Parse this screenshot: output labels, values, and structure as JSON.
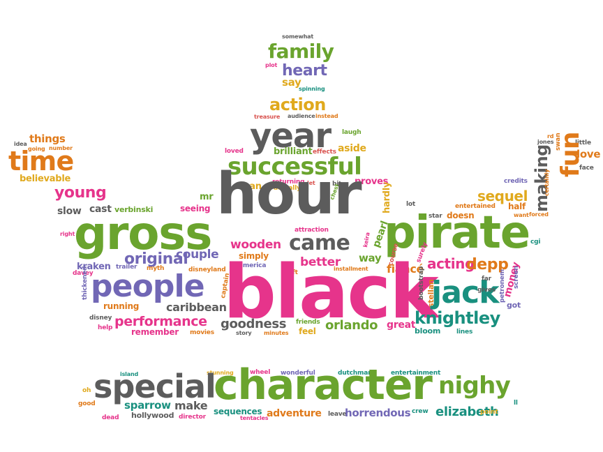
{
  "palette": {
    "green": "#6aa42e",
    "gray": "#5c5c5c",
    "pink": "#e6348b",
    "purple": "#7167b5",
    "orange": "#e07a1a",
    "yellow": "#e0a91d",
    "teal": "#19907f",
    "red": "#d9534f",
    "blue": "#2b8fb8"
  },
  "words": [
    {
      "text": "somewhat",
      "color": "gray"
    },
    {
      "text": "family",
      "color": "green"
    },
    {
      "text": "plot",
      "color": "pink"
    },
    {
      "text": "heart",
      "color": "purple"
    },
    {
      "text": "say",
      "color": "yellow"
    },
    {
      "text": "spinning",
      "color": "teal"
    },
    {
      "text": "action",
      "color": "yellow"
    },
    {
      "text": "treasure",
      "color": "red"
    },
    {
      "text": "audience",
      "color": "gray"
    },
    {
      "text": "instead",
      "color": "orange"
    },
    {
      "text": "year",
      "color": "gray"
    },
    {
      "text": "laugh",
      "color": "green"
    },
    {
      "text": "things",
      "color": "orange"
    },
    {
      "text": "idea",
      "color": "gray"
    },
    {
      "text": "going",
      "color": "orange"
    },
    {
      "text": "number",
      "color": "orange"
    },
    {
      "text": "time",
      "color": "orange"
    },
    {
      "text": "believable",
      "color": "yellow"
    },
    {
      "text": "loved",
      "color": "pink"
    },
    {
      "text": "brilliant",
      "color": "green"
    },
    {
      "text": "effects",
      "color": "red"
    },
    {
      "text": "aside",
      "color": "yellow"
    },
    {
      "text": "successful",
      "color": "green"
    },
    {
      "text": "rd",
      "color": "orange"
    },
    {
      "text": "jones",
      "color": "gray"
    },
    {
      "text": "little",
      "color": "gray"
    },
    {
      "text": "fun",
      "color": "orange"
    },
    {
      "text": "love",
      "color": "orange"
    },
    {
      "text": "face",
      "color": "gray"
    },
    {
      "text": "swan",
      "color": "orange"
    },
    {
      "text": "making",
      "color": "gray"
    },
    {
      "text": "credits",
      "color": "purple"
    },
    {
      "text": "certainly",
      "color": "orange"
    },
    {
      "text": "young",
      "color": "pink"
    },
    {
      "text": "man",
      "color": "yellow"
    },
    {
      "text": "returning",
      "color": "pink"
    },
    {
      "text": "actually",
      "color": "yellow"
    },
    {
      "text": "let",
      "color": "red"
    },
    {
      "text": "bit",
      "color": "gray"
    },
    {
      "text": "proves",
      "color": "pink"
    },
    {
      "text": "mr",
      "color": "green"
    },
    {
      "text": "chest",
      "color": "green"
    },
    {
      "text": "hardly",
      "color": "yellow"
    },
    {
      "text": "sequel",
      "color": "yellow"
    },
    {
      "text": "slow",
      "color": "gray"
    },
    {
      "text": "cast",
      "color": "gray"
    },
    {
      "text": "verbinski",
      "color": "green"
    },
    {
      "text": "seeing",
      "color": "pink"
    },
    {
      "text": "hour",
      "color": "gray"
    },
    {
      "text": "lot",
      "color": "gray"
    },
    {
      "text": "entertained",
      "color": "orange"
    },
    {
      "text": "half",
      "color": "orange"
    },
    {
      "text": "star",
      "color": "gray"
    },
    {
      "text": "doesn",
      "color": "orange"
    },
    {
      "text": "want",
      "color": "orange"
    },
    {
      "text": "forced",
      "color": "orange"
    },
    {
      "text": "right",
      "color": "pink"
    },
    {
      "text": "gross",
      "color": "green"
    },
    {
      "text": "attraction",
      "color": "pink"
    },
    {
      "text": "pearl",
      "color": "green"
    },
    {
      "text": "pirate",
      "color": "green"
    },
    {
      "text": "cgi",
      "color": "teal"
    },
    {
      "text": "wooden",
      "color": "pink"
    },
    {
      "text": "came",
      "color": "gray"
    },
    {
      "text": "keira",
      "color": "pink"
    },
    {
      "text": "course",
      "color": "red"
    },
    {
      "text": "surely",
      "color": "pink"
    },
    {
      "text": "original",
      "color": "purple"
    },
    {
      "text": "couple",
      "color": "purple"
    },
    {
      "text": "simply",
      "color": "orange"
    },
    {
      "text": "way",
      "color": "green"
    },
    {
      "text": "acting",
      "color": "pink"
    },
    {
      "text": "depp",
      "color": "orange"
    },
    {
      "text": "kraken",
      "color": "purple"
    },
    {
      "text": "davey",
      "color": "pink"
    },
    {
      "text": "trailer",
      "color": "purple"
    },
    {
      "text": "myth",
      "color": "orange"
    },
    {
      "text": "disneyland",
      "color": "orange"
    },
    {
      "text": "america",
      "color": "purple"
    },
    {
      "text": "better",
      "color": "pink"
    },
    {
      "text": "left",
      "color": "orange"
    },
    {
      "text": "installment",
      "color": "orange"
    },
    {
      "text": "fiancé",
      "color": "orange"
    },
    {
      "text": "people",
      "color": "purple"
    },
    {
      "text": "black",
      "color": "pink"
    },
    {
      "text": "captain",
      "color": "orange"
    },
    {
      "text": "bootstrap",
      "color": "gray"
    },
    {
      "text": "stellan",
      "color": "orange"
    },
    {
      "text": "jack",
      "color": "teal"
    },
    {
      "text": "money",
      "color": "pink"
    },
    {
      "text": "far",
      "color": "gray"
    },
    {
      "text": "gives",
      "color": "gray"
    },
    {
      "text": "petronem",
      "color": "purple"
    },
    {
      "text": "screen",
      "color": "purple"
    },
    {
      "text": "got",
      "color": "purple"
    },
    {
      "text": "thickened",
      "color": "purple"
    },
    {
      "text": "running",
      "color": "orange"
    },
    {
      "text": "caribbean",
      "color": "gray"
    },
    {
      "text": "disney",
      "color": "gray"
    },
    {
      "text": "performance",
      "color": "pink"
    },
    {
      "text": "goodness",
      "color": "gray"
    },
    {
      "text": "friends",
      "color": "green"
    },
    {
      "text": "orlando",
      "color": "green"
    },
    {
      "text": "great",
      "color": "pink"
    },
    {
      "text": "knightley",
      "color": "teal"
    },
    {
      "text": "help",
      "color": "pink"
    },
    {
      "text": "remember",
      "color": "pink"
    },
    {
      "text": "movies",
      "color": "orange"
    },
    {
      "text": "story",
      "color": "gray"
    },
    {
      "text": "minutes",
      "color": "orange"
    },
    {
      "text": "feel",
      "color": "yellow"
    },
    {
      "text": "bloom",
      "color": "teal"
    },
    {
      "text": "lines",
      "color": "teal"
    },
    {
      "text": "island",
      "color": "teal"
    },
    {
      "text": "stunning",
      "color": "yellow"
    },
    {
      "text": "wheel",
      "color": "pink"
    },
    {
      "text": "wonderful",
      "color": "purple"
    },
    {
      "text": "dutchman",
      "color": "teal"
    },
    {
      "text": "entertainment",
      "color": "teal"
    },
    {
      "text": "oh",
      "color": "yellow"
    },
    {
      "text": "special",
      "color": "gray"
    },
    {
      "text": "character",
      "color": "green"
    },
    {
      "text": "nighy",
      "color": "green"
    },
    {
      "text": "ll",
      "color": "teal"
    },
    {
      "text": "good",
      "color": "orange"
    },
    {
      "text": "sparrow",
      "color": "teal"
    },
    {
      "text": "make",
      "color": "gray"
    },
    {
      "text": "elizabeth",
      "color": "teal"
    },
    {
      "text": "point",
      "color": "yellow"
    },
    {
      "text": "dead",
      "color": "pink"
    },
    {
      "text": "hollywood",
      "color": "gray"
    },
    {
      "text": "director",
      "color": "pink"
    },
    {
      "text": "sequences",
      "color": "teal"
    },
    {
      "text": "tentacles",
      "color": "pink"
    },
    {
      "text": "adventure",
      "color": "orange"
    },
    {
      "text": "leave",
      "color": "gray"
    },
    {
      "text": "horrendous",
      "color": "purple"
    },
    {
      "text": "crew",
      "color": "teal"
    }
  ]
}
